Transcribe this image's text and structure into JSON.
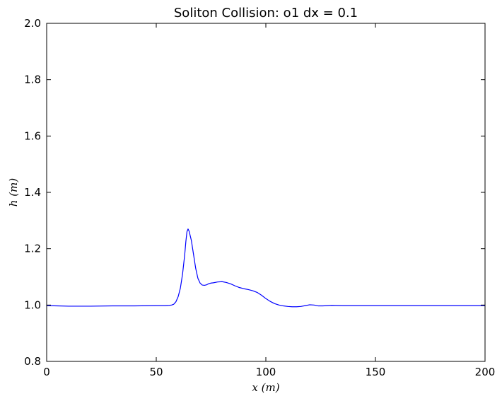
{
  "chart_data": {
    "type": "line",
    "title": "Soliton Collision: o1 dx = 0.1",
    "xlabel": "x (m)",
    "ylabel": "h (m)",
    "xlim": [
      0,
      200
    ],
    "ylim": [
      0.8,
      2.0
    ],
    "x_ticks": [
      0,
      50,
      100,
      150,
      200
    ],
    "y_ticks": [
      0.8,
      1.0,
      1.2,
      1.4,
      1.6,
      1.8,
      2.0
    ],
    "x_tick_labels": [
      "0",
      "50",
      "100",
      "150",
      "200"
    ],
    "y_tick_labels": [
      "0.8",
      "1.0",
      "1.2",
      "1.4",
      "1.6",
      "1.8",
      "2.0"
    ],
    "grid": false,
    "series": [
      {
        "color": "#0000ff",
        "x": [
          0,
          5,
          10,
          20,
          30,
          40,
          50,
          54,
          56,
          57,
          58,
          59,
          60,
          61,
          62,
          63,
          63.5,
          64,
          64.5,
          65,
          66,
          67,
          68,
          69,
          70,
          71,
          72,
          73,
          74,
          75,
          76,
          78,
          80,
          82,
          84,
          86,
          88,
          90,
          92,
          94,
          96,
          98,
          100,
          102,
          104,
          106,
          108,
          110,
          112,
          114,
          116,
          118,
          120,
          122,
          124,
          126,
          128,
          130,
          135,
          140,
          150,
          160,
          170,
          180,
          190,
          200
        ],
        "y": [
          0.998,
          0.997,
          0.996,
          0.996,
          0.997,
          0.997,
          0.998,
          0.998,
          0.999,
          1.0,
          1.003,
          1.012,
          1.03,
          1.06,
          1.11,
          1.18,
          1.225,
          1.26,
          1.27,
          1.262,
          1.23,
          1.18,
          1.13,
          1.095,
          1.078,
          1.071,
          1.07,
          1.072,
          1.076,
          1.078,
          1.079,
          1.082,
          1.083,
          1.08,
          1.075,
          1.068,
          1.062,
          1.058,
          1.055,
          1.051,
          1.045,
          1.035,
          1.023,
          1.013,
          1.005,
          1.0,
          0.997,
          0.995,
          0.994,
          0.994,
          0.995,
          0.998,
          1.001,
          1.0,
          0.997,
          0.997,
          0.998,
          0.999,
          0.998,
          0.998,
          0.998,
          0.998,
          0.998,
          0.998,
          0.998,
          0.998
        ]
      }
    ]
  }
}
